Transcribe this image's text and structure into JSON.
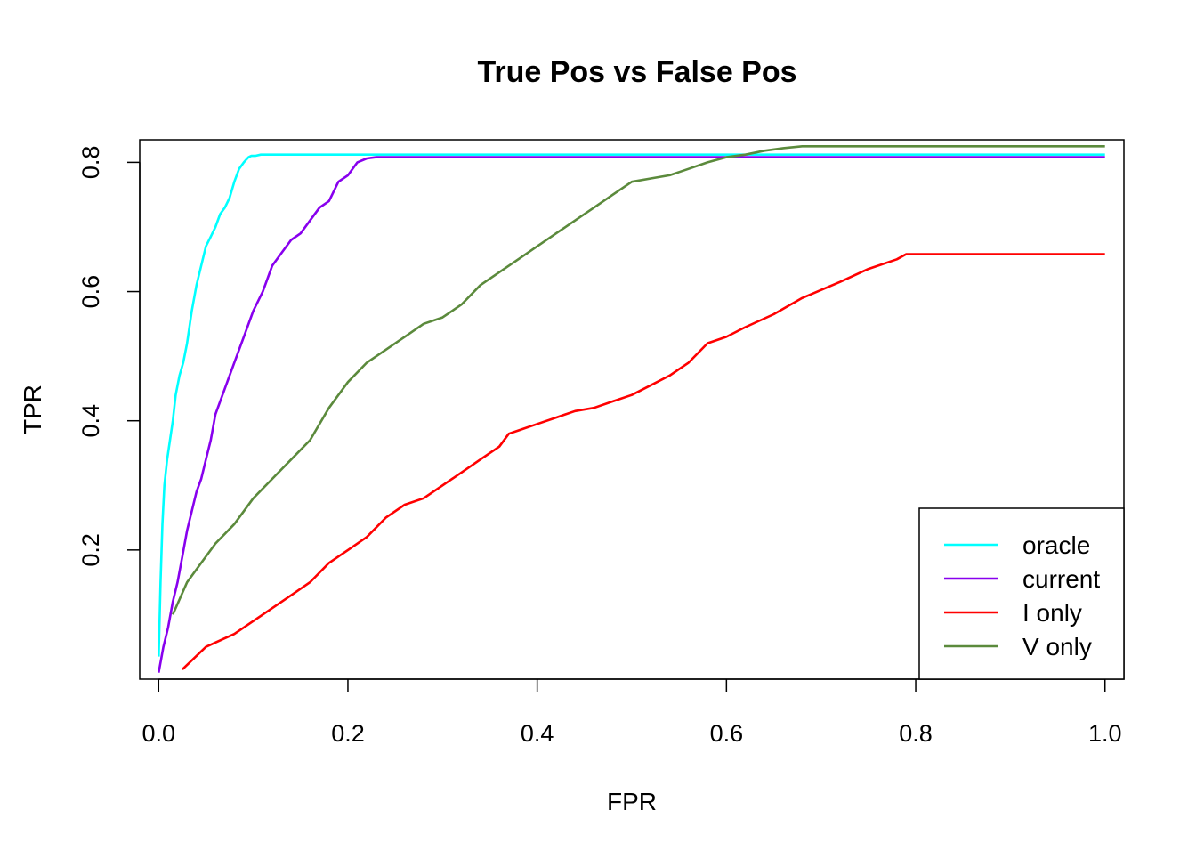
{
  "chart_data": {
    "type": "line",
    "title": "True Pos vs False Pos",
    "xlabel": "FPR",
    "ylabel": "TPR",
    "xlim": [
      -0.02,
      1.02
    ],
    "ylim": [
      0.0,
      0.835
    ],
    "x_ticks": [
      0.0,
      0.2,
      0.4,
      0.6,
      0.8,
      1.0
    ],
    "x_tick_labels": [
      "0.0",
      "0.2",
      "0.4",
      "0.6",
      "0.8",
      "1.0"
    ],
    "y_ticks": [
      0.2,
      0.4,
      0.6,
      0.8
    ],
    "y_tick_labels": [
      "0.2",
      "0.4",
      "0.6",
      "0.8"
    ],
    "grid": false,
    "legend_position": "bottom-right",
    "series": [
      {
        "name": "oracle",
        "color": "#00FFFF",
        "x": [
          0.0,
          0.002,
          0.004,
          0.006,
          0.009,
          0.012,
          0.015,
          0.018,
          0.022,
          0.026,
          0.03,
          0.035,
          0.04,
          0.045,
          0.05,
          0.055,
          0.06,
          0.065,
          0.07,
          0.075,
          0.08,
          0.085,
          0.09,
          0.093,
          0.095,
          0.098,
          0.102,
          0.108,
          0.112,
          1.0
        ],
        "y": [
          0.035,
          0.15,
          0.24,
          0.3,
          0.34,
          0.37,
          0.4,
          0.44,
          0.47,
          0.49,
          0.52,
          0.57,
          0.61,
          0.64,
          0.67,
          0.685,
          0.7,
          0.72,
          0.73,
          0.745,
          0.77,
          0.79,
          0.8,
          0.805,
          0.808,
          0.81,
          0.81,
          0.812,
          0.812,
          0.812
        ]
      },
      {
        "name": "current",
        "color": "#8800EE",
        "x": [
          0.0,
          0.005,
          0.01,
          0.015,
          0.02,
          0.025,
          0.03,
          0.035,
          0.04,
          0.045,
          0.05,
          0.055,
          0.06,
          0.065,
          0.07,
          0.075,
          0.08,
          0.09,
          0.1,
          0.11,
          0.12,
          0.13,
          0.14,
          0.15,
          0.16,
          0.17,
          0.18,
          0.19,
          0.2,
          0.21,
          0.22,
          0.23,
          1.0
        ],
        "y": [
          0.01,
          0.05,
          0.08,
          0.12,
          0.15,
          0.19,
          0.23,
          0.26,
          0.29,
          0.31,
          0.34,
          0.37,
          0.41,
          0.43,
          0.45,
          0.47,
          0.49,
          0.53,
          0.57,
          0.6,
          0.64,
          0.66,
          0.68,
          0.69,
          0.71,
          0.73,
          0.74,
          0.77,
          0.78,
          0.8,
          0.806,
          0.808,
          0.808
        ]
      },
      {
        "name": "I only",
        "color": "#FF0000",
        "x": [
          0.025,
          0.05,
          0.08,
          0.1,
          0.12,
          0.14,
          0.16,
          0.18,
          0.2,
          0.22,
          0.24,
          0.26,
          0.28,
          0.3,
          0.32,
          0.34,
          0.36,
          0.37,
          0.38,
          0.4,
          0.42,
          0.44,
          0.46,
          0.48,
          0.5,
          0.52,
          0.54,
          0.56,
          0.58,
          0.6,
          0.62,
          0.65,
          0.68,
          0.72,
          0.75,
          0.78,
          0.79,
          0.8,
          1.0
        ],
        "y": [
          0.015,
          0.05,
          0.07,
          0.09,
          0.11,
          0.13,
          0.15,
          0.18,
          0.2,
          0.22,
          0.25,
          0.27,
          0.28,
          0.3,
          0.32,
          0.34,
          0.36,
          0.38,
          0.385,
          0.395,
          0.405,
          0.415,
          0.42,
          0.43,
          0.44,
          0.455,
          0.47,
          0.49,
          0.52,
          0.53,
          0.545,
          0.565,
          0.59,
          0.615,
          0.635,
          0.65,
          0.658,
          0.658,
          0.658
        ]
      },
      {
        "name": "V only",
        "color": "#5B8A3C",
        "x": [
          0.015,
          0.03,
          0.045,
          0.06,
          0.08,
          0.1,
          0.12,
          0.14,
          0.16,
          0.18,
          0.2,
          0.22,
          0.24,
          0.26,
          0.28,
          0.3,
          0.32,
          0.34,
          0.36,
          0.38,
          0.4,
          0.42,
          0.44,
          0.46,
          0.48,
          0.5,
          0.52,
          0.54,
          0.56,
          0.58,
          0.6,
          0.62,
          0.64,
          0.66,
          0.68,
          1.0
        ],
        "y": [
          0.1,
          0.15,
          0.18,
          0.21,
          0.24,
          0.28,
          0.31,
          0.34,
          0.37,
          0.42,
          0.46,
          0.49,
          0.51,
          0.53,
          0.55,
          0.56,
          0.58,
          0.61,
          0.63,
          0.65,
          0.67,
          0.69,
          0.71,
          0.73,
          0.75,
          0.77,
          0.775,
          0.78,
          0.79,
          0.8,
          0.808,
          0.812,
          0.818,
          0.822,
          0.825,
          0.825
        ]
      }
    ]
  }
}
